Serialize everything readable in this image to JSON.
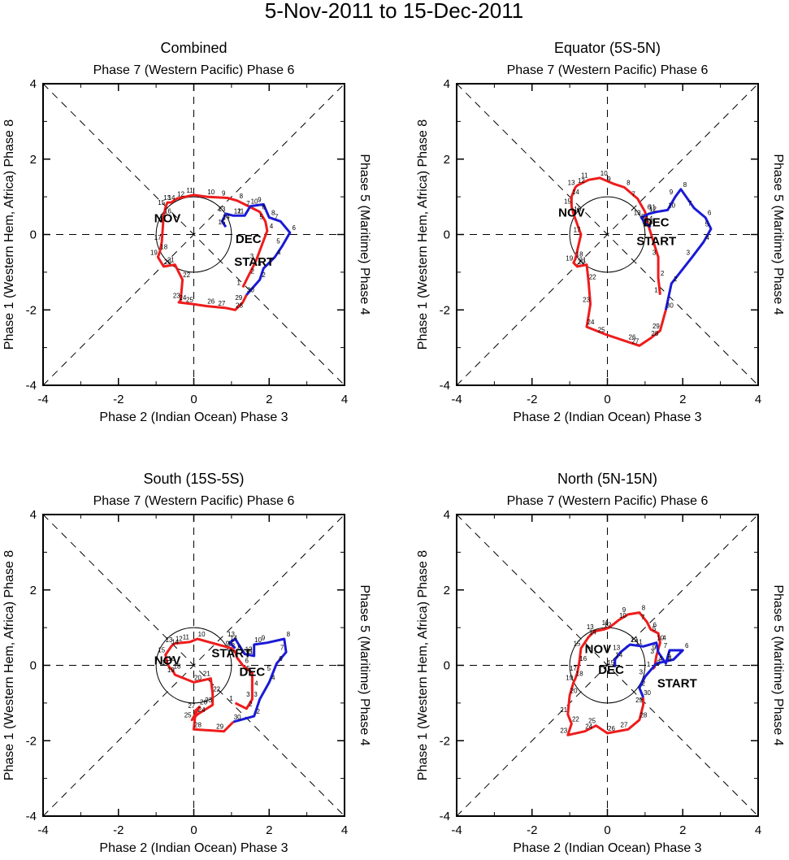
{
  "title": "5-Nov-2011 to 15-Dec-2011",
  "colors": {
    "nov": "#ee1c1c",
    "dec": "#1a1ad6",
    "axis": "#000000"
  },
  "chart_data": [
    {
      "type": "line",
      "panel_title": "Combined",
      "top_label": "Phase 7 (Western Pacific) Phase 6",
      "bottom_label": "Phase 2 (Indian Ocean) Phase 3",
      "left_label": "Phase 1 (Western Hem, Africa) Phase 8",
      "right_label": "Phase 5 (Maritime) Phase 4",
      "xlim": [
        -4,
        4
      ],
      "ylim": [
        -4,
        4
      ],
      "xticks": [
        "-4",
        "-2",
        "0",
        "2",
        "4"
      ],
      "yticks": [
        "-4",
        "-2",
        "0",
        "2",
        "4"
      ],
      "labels": {
        "start": "START",
        "nov": "NOV",
        "dec": "DEC"
      },
      "start_point": [
        1.6,
        -0.7
      ],
      "nov_label_pos": [
        -0.7,
        0.45
      ],
      "dec_label_pos": [
        1.45,
        -0.1
      ],
      "series": [
        {
          "name": "November",
          "color": "red",
          "points": [
            [
              1.3,
              -1.4
            ],
            [
              1.45,
              -1.1
            ],
            [
              1.65,
              -0.7
            ],
            [
              1.95,
              0.1
            ],
            [
              1.9,
              0.35
            ],
            [
              1.75,
              0.6
            ],
            [
              1.55,
              0.7
            ],
            [
              1.15,
              0.9
            ],
            [
              0.9,
              0.97
            ],
            [
              0.35,
              1.0
            ],
            [
              0.0,
              1.05
            ],
            [
              -0.45,
              0.95
            ],
            [
              -0.6,
              0.85
            ],
            [
              -0.7,
              0.85
            ],
            [
              -0.75,
              0.72
            ],
            [
              -0.8,
              0.5
            ],
            [
              -0.85,
              -0.2
            ],
            [
              -0.9,
              -0.45
            ],
            [
              -0.95,
              -0.6
            ],
            [
              -0.8,
              -0.85
            ],
            [
              -0.5,
              -0.8
            ],
            [
              -0.3,
              -1.2
            ],
            [
              -0.35,
              -1.75
            ],
            [
              -0.4,
              -1.8
            ],
            [
              0.0,
              -1.85
            ],
            [
              0.35,
              -1.9
            ],
            [
              0.85,
              -1.95
            ],
            [
              1.1,
              -2.0
            ],
            [
              1.3,
              -1.8
            ],
            [
              1.4,
              -1.6
            ]
          ]
        },
        {
          "name": "December",
          "color": "blue",
          "points": [
            [
              1.4,
              -1.6
            ],
            [
              1.75,
              -1.2
            ],
            [
              1.85,
              -0.9
            ],
            [
              2.15,
              -0.6
            ],
            [
              2.35,
              -0.3
            ],
            [
              2.55,
              0.05
            ],
            [
              2.3,
              0.35
            ],
            [
              2.0,
              0.45
            ],
            [
              1.85,
              0.8
            ],
            [
              1.5,
              0.75
            ],
            [
              1.35,
              0.5
            ],
            [
              1.05,
              0.5
            ],
            [
              0.85,
              0.55
            ],
            [
              0.75,
              0.35
            ],
            [
              0.85,
              0.2
            ]
          ]
        }
      ],
      "nov_day_labels": [
        "1",
        "2",
        "3",
        "4",
        "5",
        "6",
        "7",
        "8",
        "9",
        "10",
        "11",
        "12",
        "13",
        "14",
        "15",
        "16",
        "17",
        "18",
        "19",
        "20",
        "21",
        "22",
        "23",
        "24",
        "25",
        "26",
        "27",
        "28",
        "29",
        "30"
      ],
      "dec_day_labels": [
        "1",
        "2",
        "3",
        "4",
        "5",
        "6",
        "7",
        "8",
        "9",
        "10",
        "11",
        "12",
        "13",
        "14",
        "15"
      ]
    },
    {
      "type": "line",
      "panel_title": "Equator (5S-5N)",
      "top_label": "Phase 7 (Western Pacific) Phase 6",
      "bottom_label": "Phase 2 (Indian Ocean) Phase 3",
      "left_label": "Phase 1 (Western Hem, Africa) Phase 8",
      "right_label": "Phase 5 (Maritime) Phase 4",
      "xlim": [
        -4,
        4
      ],
      "ylim": [
        -4,
        4
      ],
      "xticks": [
        "-4",
        "-2",
        "0",
        "2",
        "4"
      ],
      "yticks": [
        "-4",
        "-2",
        "0",
        "2",
        "4"
      ],
      "labels": {
        "start": "START",
        "nov": "NOV",
        "dec": "DEC"
      },
      "start_point": [
        1.3,
        -0.15
      ],
      "nov_label_pos": [
        -0.95,
        0.6
      ],
      "dec_label_pos": [
        1.3,
        0.35
      ],
      "series": [
        {
          "name": "November",
          "color": "red",
          "points": [
            [
              1.4,
              -1.6
            ],
            [
              1.35,
              -1.15
            ],
            [
              1.35,
              -0.6
            ],
            [
              1.1,
              0.2
            ],
            [
              1.05,
              0.35
            ],
            [
              1.0,
              0.6
            ],
            [
              0.8,
              0.95
            ],
            [
              0.45,
              1.25
            ],
            [
              0.15,
              1.35
            ],
            [
              -0.2,
              1.5
            ],
            [
              -0.5,
              1.45
            ],
            [
              -0.8,
              1.3
            ],
            [
              -0.85,
              1.25
            ],
            [
              -0.95,
              1.0
            ],
            [
              -0.95,
              0.75
            ],
            [
              -0.9,
              0.55
            ],
            [
              -0.7,
              0.0
            ],
            [
              -0.85,
              -0.65
            ],
            [
              -0.9,
              -0.75
            ],
            [
              -0.8,
              -0.85
            ],
            [
              -0.55,
              -0.8
            ],
            [
              -0.5,
              -1.25
            ],
            [
              -0.45,
              -1.85
            ],
            [
              -0.55,
              -2.45
            ],
            [
              -0.05,
              -2.65
            ],
            [
              0.55,
              -2.85
            ],
            [
              0.85,
              -2.95
            ],
            [
              1.15,
              -2.75
            ],
            [
              1.4,
              -2.55
            ],
            [
              1.55,
              -2.0
            ]
          ]
        },
        {
          "name": "December",
          "color": "blue",
          "points": [
            [
              1.55,
              -2.0
            ],
            [
              1.7,
              -1.3
            ],
            [
              2.25,
              -0.6
            ],
            [
              2.55,
              -0.2
            ],
            [
              2.75,
              0.15
            ],
            [
              2.6,
              0.45
            ],
            [
              2.3,
              0.7
            ],
            [
              1.95,
              1.2
            ],
            [
              1.8,
              1.0
            ],
            [
              1.6,
              0.65
            ],
            [
              1.3,
              0.6
            ],
            [
              1.1,
              0.55
            ],
            [
              0.9,
              0.45
            ],
            [
              1.0,
              0.3
            ],
            [
              1.15,
              0.2
            ]
          ]
        }
      ],
      "nov_day_labels": [
        "1",
        "2",
        "3",
        "4",
        "5",
        "6",
        "7",
        "8",
        "9",
        "10",
        "11",
        "12",
        "13",
        "14",
        "15",
        "16",
        "17",
        "18",
        "19",
        "20",
        "21",
        "22",
        "23",
        "24",
        "25",
        "26",
        "27",
        "28",
        "29",
        "30"
      ],
      "dec_day_labels": [
        "1",
        "2",
        "3",
        "4",
        "5",
        "6",
        "7",
        "8",
        "9",
        "10",
        "11",
        "12",
        "13",
        "14",
        "15"
      ]
    },
    {
      "type": "line",
      "panel_title": "South (15S-5S)",
      "top_label": "Phase 7 (Western Pacific) Phase 6",
      "bottom_label": "Phase 2 (Indian Ocean) Phase 3",
      "left_label": "Phase 1 (Western Hem, Africa) Phase 8",
      "right_label": "Phase 5 (Maritime) Phase 4",
      "xlim": [
        -4,
        4
      ],
      "ylim": [
        -4,
        4
      ],
      "xticks": [
        "-4",
        "-2",
        "0",
        "2",
        "4"
      ],
      "yticks": [
        "-4",
        "-2",
        "0",
        "2",
        "4"
      ],
      "labels": {
        "start": "START",
        "nov": "NOV",
        "dec": "DEC"
      },
      "start_point": [
        1.0,
        0.35
      ],
      "nov_label_pos": [
        -0.7,
        0.15
      ],
      "dec_label_pos": [
        1.55,
        -0.15
      ],
      "series": [
        {
          "name": "November",
          "color": "red",
          "points": [
            [
              1.1,
              -1.0
            ],
            [
              1.4,
              -1.15
            ],
            [
              1.55,
              -0.9
            ],
            [
              1.55,
              -0.6
            ],
            [
              1.55,
              -0.2
            ],
            [
              1.3,
              0.0
            ],
            [
              1.15,
              0.2
            ],
            [
              1.1,
              0.35
            ],
            [
              1.0,
              0.45
            ],
            [
              0.1,
              0.7
            ],
            [
              -0.1,
              0.62
            ],
            [
              -0.5,
              0.58
            ],
            [
              -0.55,
              0.55
            ],
            [
              -0.6,
              0.5
            ],
            [
              -0.75,
              0.28
            ],
            [
              -0.7,
              0.05
            ],
            [
              -0.65,
              -0.05
            ],
            [
              -0.55,
              -0.15
            ],
            [
              -0.5,
              -0.25
            ],
            [
              0.0,
              -0.45
            ],
            [
              0.45,
              -0.35
            ],
            [
              0.5,
              -0.75
            ],
            [
              0.5,
              -1.05
            ],
            [
              0.1,
              -1.3
            ],
            [
              -0.05,
              -1.45
            ],
            [
              0.15,
              -1.1
            ],
            [
              0.05,
              -1.2
            ],
            [
              0.0,
              -1.7
            ],
            [
              0.8,
              -1.75
            ],
            [
              1.05,
              -1.5
            ]
          ]
        },
        {
          "name": "December",
          "color": "blue",
          "points": [
            [
              1.05,
              -1.5
            ],
            [
              1.6,
              -1.35
            ],
            [
              1.75,
              -0.9
            ],
            [
              2.0,
              -0.45
            ],
            [
              2.1,
              -0.2
            ],
            [
              2.2,
              0.05
            ],
            [
              2.45,
              0.35
            ],
            [
              2.4,
              0.7
            ],
            [
              1.95,
              0.6
            ],
            [
              1.6,
              0.55
            ],
            [
              1.6,
              0.25
            ],
            [
              1.35,
              0.3
            ],
            [
              1.1,
              0.7
            ],
            [
              0.95,
              0.6
            ],
            [
              1.1,
              0.45
            ]
          ]
        }
      ],
      "nov_day_labels": [
        "1",
        "2",
        "3",
        "4",
        "5",
        "6",
        "7",
        "8",
        "9",
        "10",
        "11",
        "12",
        "13",
        "14",
        "15",
        "16",
        "17",
        "18",
        "19",
        "20",
        "21",
        "22",
        "23",
        "24",
        "25",
        "26",
        "27",
        "28",
        "29",
        "30"
      ],
      "dec_day_labels": [
        "1",
        "2",
        "3",
        "4",
        "5",
        "6",
        "7",
        "8",
        "9",
        "10",
        "11",
        "12",
        "13",
        "14",
        "15"
      ]
    },
    {
      "type": "line",
      "panel_title": "North (5N-15N)",
      "top_label": "Phase 7 (Western Pacific) Phase 6",
      "bottom_label": "Phase 2 (Indian Ocean) Phase 3",
      "left_label": "Phase 1 (Western Hem, Africa) Phase 8",
      "right_label": "Phase 5 (Maritime) Phase 4",
      "xlim": [
        -4,
        4
      ],
      "ylim": [
        -4,
        4
      ],
      "xticks": [
        "-4",
        "-2",
        "0",
        "2",
        "4"
      ],
      "yticks": [
        "-4",
        "-2",
        "0",
        "2",
        "4"
      ],
      "labels": {
        "start": "START",
        "nov": "NOV",
        "dec": "DEC"
      },
      "start_point": [
        1.85,
        -0.45
      ],
      "nov_label_pos": [
        -0.25,
        0.45
      ],
      "dec_label_pos": [
        0.1,
        -0.1
      ],
      "series": [
        {
          "name": "November",
          "color": "red",
          "points": [
            [
              1.2,
              -0.1
            ],
            [
              1.25,
              -0.05
            ],
            [
              1.3,
              0.25
            ],
            [
              1.4,
              0.6
            ],
            [
              1.35,
              0.85
            ],
            [
              1.15,
              0.95
            ],
            [
              1.05,
              1.15
            ],
            [
              0.85,
              1.4
            ],
            [
              0.55,
              1.35
            ],
            [
              0.3,
              1.2
            ],
            [
              0.05,
              1.0
            ],
            [
              -0.1,
              0.95
            ],
            [
              -0.35,
              0.9
            ],
            [
              -0.5,
              0.75
            ],
            [
              -0.7,
              0.45
            ],
            [
              -0.75,
              0.05
            ],
            [
              -0.8,
              -0.2
            ],
            [
              -0.85,
              -0.35
            ],
            [
              -0.9,
              -0.45
            ],
            [
              -1.0,
              -0.8
            ],
            [
              -1.05,
              -1.3
            ],
            [
              -0.95,
              -1.55
            ],
            [
              -1.05,
              -1.85
            ],
            [
              -0.6,
              -1.75
            ],
            [
              -0.3,
              -1.6
            ],
            [
              0.0,
              -1.8
            ],
            [
              0.55,
              -1.7
            ],
            [
              0.85,
              -1.45
            ],
            [
              0.95,
              -1.05
            ],
            [
              0.95,
              -0.85
            ]
          ]
        },
        {
          "name": "December",
          "color": "blue",
          "points": [
            [
              0.95,
              -0.85
            ],
            [
              0.85,
              -0.6
            ],
            [
              1.0,
              -0.3
            ],
            [
              1.3,
              0.05
            ],
            [
              1.75,
              0.15
            ],
            [
              2.0,
              0.4
            ],
            [
              1.65,
              0.4
            ],
            [
              1.55,
              0.05
            ],
            [
              1.35,
              0.35
            ],
            [
              1.3,
              0.6
            ],
            [
              0.95,
              0.5
            ],
            [
              0.6,
              0.55
            ],
            [
              0.35,
              0.35
            ],
            [
              0.2,
              0.15
            ],
            [
              0.2,
              -0.05
            ]
          ]
        }
      ],
      "nov_day_labels": [
        "1",
        "2",
        "3",
        "4",
        "5",
        "6",
        "7",
        "8",
        "9",
        "10",
        "11",
        "12",
        "13",
        "14",
        "15",
        "16",
        "17",
        "18",
        "19",
        "20",
        "21",
        "22",
        "23",
        "24",
        "25",
        "26",
        "27",
        "28",
        "29",
        "30"
      ],
      "dec_day_labels": [
        "1",
        "2",
        "3",
        "4",
        "5",
        "6",
        "7",
        "8",
        "9",
        "10",
        "11",
        "12",
        "13",
        "14",
        "15"
      ]
    }
  ]
}
